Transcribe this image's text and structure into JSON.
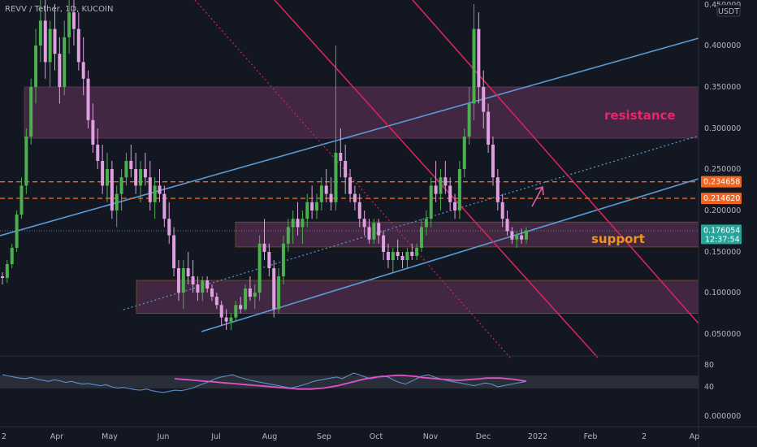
{
  "chart_data": {
    "type": "candlestick",
    "title": "REVV / Tether, 1D, KUCOIN",
    "currency": "USDT",
    "y_axis": {
      "ticks": [
        "0.450000",
        "0.400000",
        "0.350000",
        "0.300000",
        "0.250000",
        "0.200000",
        "0.150000",
        "0.100000",
        "0.050000"
      ],
      "ylim": [
        0.0,
        0.45
      ]
    },
    "rsi_axis": {
      "ticks": [
        "80",
        "40",
        "0.000000"
      ]
    },
    "x_axis": {
      "ticks": [
        "2",
        "Apr",
        "May",
        "Jun",
        "Jul",
        "Aug",
        "Sep",
        "Oct",
        "Nov",
        "Dec",
        "2022",
        "Feb",
        "2",
        "Ap"
      ]
    },
    "price_labels": [
      {
        "value": 0.234658,
        "text": "0.234658",
        "color": "#f0641e"
      },
      {
        "value": 0.21462,
        "text": "0.214620",
        "color": "#f0641e"
      },
      {
        "value": 0.176054,
        "text": "0.176054",
        "sub": "12:37:54",
        "color": "#26a69a"
      }
    ],
    "horizontal_lines": [
      {
        "value": 0.234658,
        "style": "dashed",
        "color": "#f0641e"
      },
      {
        "value": 0.21462,
        "style": "dashed",
        "color": "#f0641e"
      }
    ],
    "zones": [
      {
        "label": "resistance",
        "from": 0.288,
        "to": 0.35,
        "label_color": "#e8256a"
      },
      {
        "label": "support",
        "from": 0.156,
        "to": 0.186,
        "label_color": "#f0941e"
      },
      {
        "label": "",
        "from": 0.075,
        "to": 0.115,
        "label_color": ""
      }
    ],
    "candles": [
      [
        0.12,
        0.125,
        0.11,
        0.118
      ],
      [
        0.118,
        0.14,
        0.112,
        0.135
      ],
      [
        0.135,
        0.16,
        0.13,
        0.155
      ],
      [
        0.155,
        0.2,
        0.15,
        0.195
      ],
      [
        0.195,
        0.24,
        0.19,
        0.23
      ],
      [
        0.23,
        0.3,
        0.22,
        0.29
      ],
      [
        0.29,
        0.36,
        0.28,
        0.35
      ],
      [
        0.35,
        0.42,
        0.33,
        0.4
      ],
      [
        0.4,
        0.46,
        0.38,
        0.43
      ],
      [
        0.43,
        0.47,
        0.36,
        0.38
      ],
      [
        0.38,
        0.43,
        0.35,
        0.42
      ],
      [
        0.42,
        0.45,
        0.37,
        0.39
      ],
      [
        0.39,
        0.41,
        0.33,
        0.35
      ],
      [
        0.35,
        0.43,
        0.34,
        0.41
      ],
      [
        0.41,
        0.47,
        0.39,
        0.44
      ],
      [
        0.44,
        0.46,
        0.4,
        0.42
      ],
      [
        0.42,
        0.44,
        0.37,
        0.38
      ],
      [
        0.38,
        0.41,
        0.34,
        0.36
      ],
      [
        0.36,
        0.37,
        0.3,
        0.31
      ],
      [
        0.31,
        0.33,
        0.27,
        0.28
      ],
      [
        0.28,
        0.3,
        0.25,
        0.26
      ],
      [
        0.26,
        0.28,
        0.22,
        0.23
      ],
      [
        0.23,
        0.27,
        0.21,
        0.25
      ],
      [
        0.25,
        0.26,
        0.19,
        0.2
      ],
      [
        0.2,
        0.23,
        0.18,
        0.22
      ],
      [
        0.22,
        0.25,
        0.2,
        0.24
      ],
      [
        0.24,
        0.27,
        0.23,
        0.26
      ],
      [
        0.26,
        0.28,
        0.24,
        0.25
      ],
      [
        0.25,
        0.27,
        0.22,
        0.23
      ],
      [
        0.23,
        0.26,
        0.21,
        0.25
      ],
      [
        0.25,
        0.27,
        0.23,
        0.24
      ],
      [
        0.24,
        0.26,
        0.2,
        0.21
      ],
      [
        0.21,
        0.24,
        0.19,
        0.23
      ],
      [
        0.23,
        0.25,
        0.21,
        0.22
      ],
      [
        0.22,
        0.23,
        0.18,
        0.19
      ],
      [
        0.19,
        0.21,
        0.16,
        0.17
      ],
      [
        0.17,
        0.18,
        0.12,
        0.13
      ],
      [
        0.13,
        0.14,
        0.09,
        0.1
      ],
      [
        0.1,
        0.14,
        0.08,
        0.13
      ],
      [
        0.13,
        0.15,
        0.11,
        0.12
      ],
      [
        0.12,
        0.14,
        0.1,
        0.11
      ],
      [
        0.11,
        0.12,
        0.09,
        0.1
      ],
      [
        0.1,
        0.12,
        0.09,
        0.115
      ],
      [
        0.115,
        0.12,
        0.1,
        0.105
      ],
      [
        0.105,
        0.11,
        0.09,
        0.095
      ],
      [
        0.095,
        0.1,
        0.08,
        0.085
      ],
      [
        0.085,
        0.09,
        0.06,
        0.07
      ],
      [
        0.07,
        0.08,
        0.055,
        0.065
      ],
      [
        0.065,
        0.075,
        0.055,
        0.07
      ],
      [
        0.07,
        0.09,
        0.065,
        0.085
      ],
      [
        0.085,
        0.095,
        0.075,
        0.08
      ],
      [
        0.08,
        0.11,
        0.078,
        0.105
      ],
      [
        0.105,
        0.12,
        0.09,
        0.095
      ],
      [
        0.095,
        0.11,
        0.08,
        0.1
      ],
      [
        0.1,
        0.17,
        0.09,
        0.16
      ],
      [
        0.16,
        0.19,
        0.14,
        0.15
      ],
      [
        0.15,
        0.16,
        0.12,
        0.13
      ],
      [
        0.13,
        0.14,
        0.07,
        0.08
      ],
      [
        0.08,
        0.13,
        0.075,
        0.12
      ],
      [
        0.12,
        0.17,
        0.11,
        0.16
      ],
      [
        0.16,
        0.19,
        0.15,
        0.18
      ],
      [
        0.18,
        0.2,
        0.16,
        0.19
      ],
      [
        0.19,
        0.21,
        0.17,
        0.18
      ],
      [
        0.18,
        0.2,
        0.16,
        0.19
      ],
      [
        0.19,
        0.22,
        0.18,
        0.21
      ],
      [
        0.21,
        0.23,
        0.19,
        0.2
      ],
      [
        0.2,
        0.22,
        0.19,
        0.21
      ],
      [
        0.21,
        0.24,
        0.2,
        0.23
      ],
      [
        0.23,
        0.25,
        0.21,
        0.22
      ],
      [
        0.22,
        0.24,
        0.2,
        0.21
      ],
      [
        0.21,
        0.4,
        0.2,
        0.27
      ],
      [
        0.27,
        0.3,
        0.24,
        0.26
      ],
      [
        0.26,
        0.28,
        0.22,
        0.24
      ],
      [
        0.24,
        0.25,
        0.21,
        0.22
      ],
      [
        0.22,
        0.23,
        0.2,
        0.21
      ],
      [
        0.21,
        0.22,
        0.18,
        0.19
      ],
      [
        0.19,
        0.2,
        0.17,
        0.18
      ],
      [
        0.18,
        0.19,
        0.16,
        0.165
      ],
      [
        0.165,
        0.19,
        0.16,
        0.185
      ],
      [
        0.185,
        0.19,
        0.16,
        0.17
      ],
      [
        0.17,
        0.175,
        0.14,
        0.15
      ],
      [
        0.15,
        0.16,
        0.13,
        0.14
      ],
      [
        0.14,
        0.155,
        0.125,
        0.15
      ],
      [
        0.15,
        0.165,
        0.14,
        0.145
      ],
      [
        0.145,
        0.15,
        0.13,
        0.14
      ],
      [
        0.14,
        0.155,
        0.13,
        0.15
      ],
      [
        0.15,
        0.16,
        0.14,
        0.145
      ],
      [
        0.145,
        0.16,
        0.14,
        0.155
      ],
      [
        0.155,
        0.19,
        0.15,
        0.18
      ],
      [
        0.18,
        0.2,
        0.17,
        0.19
      ],
      [
        0.19,
        0.24,
        0.18,
        0.23
      ],
      [
        0.23,
        0.26,
        0.21,
        0.22
      ],
      [
        0.22,
        0.25,
        0.2,
        0.24
      ],
      [
        0.24,
        0.26,
        0.22,
        0.23
      ],
      [
        0.23,
        0.24,
        0.2,
        0.21
      ],
      [
        0.21,
        0.22,
        0.19,
        0.2
      ],
      [
        0.2,
        0.26,
        0.19,
        0.25
      ],
      [
        0.25,
        0.3,
        0.24,
        0.29
      ],
      [
        0.29,
        0.35,
        0.28,
        0.33
      ],
      [
        0.33,
        0.45,
        0.31,
        0.42
      ],
      [
        0.42,
        0.44,
        0.33,
        0.35
      ],
      [
        0.35,
        0.37,
        0.3,
        0.32
      ],
      [
        0.32,
        0.33,
        0.27,
        0.28
      ],
      [
        0.28,
        0.29,
        0.23,
        0.24
      ],
      [
        0.24,
        0.25,
        0.2,
        0.21
      ],
      [
        0.21,
        0.22,
        0.18,
        0.19
      ],
      [
        0.19,
        0.2,
        0.17,
        0.175
      ],
      [
        0.175,
        0.18,
        0.16,
        0.165
      ],
      [
        0.165,
        0.175,
        0.155,
        0.17
      ],
      [
        0.17,
        0.178,
        0.16,
        0.165
      ],
      [
        0.165,
        0.18,
        0.16,
        0.176
      ]
    ],
    "rsi": [
      62,
      60,
      58,
      56,
      55,
      57,
      54,
      52,
      50,
      53,
      51,
      48,
      50,
      47,
      45,
      46,
      44,
      42,
      44,
      40,
      38,
      39,
      37,
      35,
      34,
      36,
      33,
      31,
      30,
      32,
      34,
      33,
      35,
      38,
      42,
      46,
      50,
      55,
      58,
      60,
      62,
      58,
      55,
      52,
      50,
      48,
      46,
      44,
      42,
      40,
      38,
      40,
      43,
      46,
      50,
      52,
      54,
      56,
      58,
      55,
      60,
      65,
      62,
      58,
      55,
      57,
      60,
      58,
      52,
      48,
      45,
      50,
      55,
      60,
      62,
      58,
      55,
      52,
      50,
      48,
      46,
      44,
      42,
      45,
      47,
      45,
      40,
      42,
      44,
      46,
      48,
      50
    ],
    "rsi_ma": [
      55,
      54,
      53,
      52,
      51,
      50,
      49,
      48,
      47,
      46,
      45,
      44,
      43,
      42,
      41,
      40,
      39,
      38,
      37,
      36,
      36,
      36,
      37,
      38,
      40,
      42,
      45,
      48,
      51,
      54,
      56,
      58,
      59,
      60,
      61,
      61,
      60,
      59,
      57,
      56,
      55,
      54,
      53,
      52,
      52,
      53,
      54,
      55,
      56,
      56,
      56,
      55,
      54,
      52,
      50
    ]
  }
}
